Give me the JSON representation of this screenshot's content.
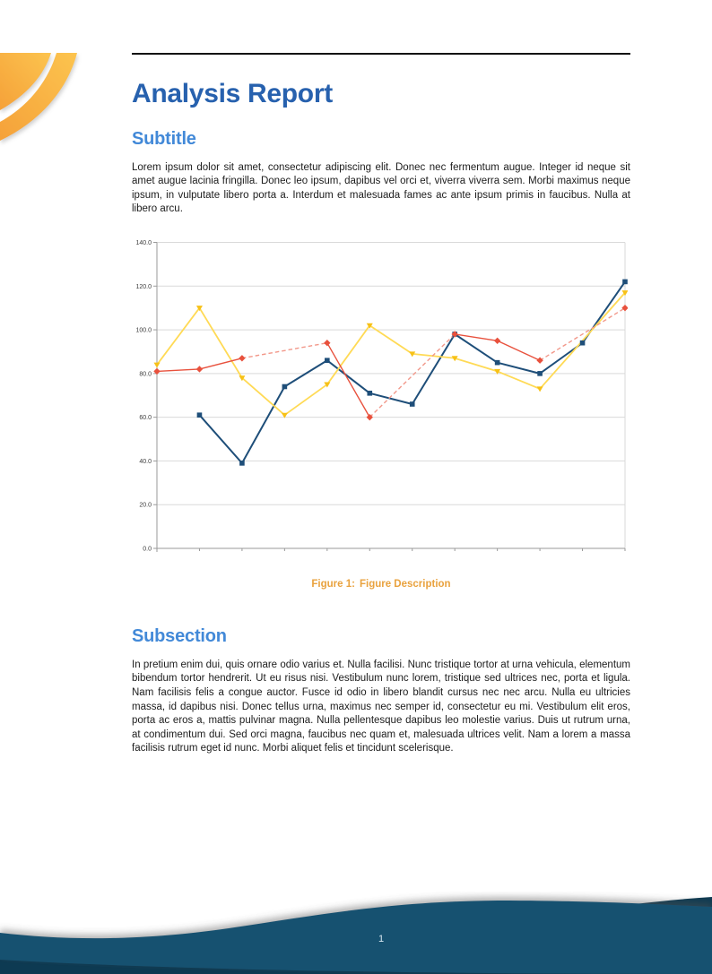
{
  "page": {
    "number": "1",
    "background": "#ffffff"
  },
  "header": {
    "rule_color": "#111111"
  },
  "decorations": {
    "corner_swoosh": {
      "color_start": "#F5A139",
      "color_end": "#FCC44F"
    },
    "footer_wave": {
      "main_color": "#175170",
      "dark_color": "#0D3A52"
    }
  },
  "document": {
    "title": "Analysis Report",
    "title_color": "#2761AE",
    "heading_color": "#4289D8",
    "sections": [
      {
        "heading": "Subtitle",
        "body": "Lorem ipsum dolor sit amet, consectetur adipiscing elit. Donec nec fermentum augue. Integer id neque sit amet augue lacinia fringilla. Donec leo ipsum, dapibus vel orci et, viverra viverra sem. Morbi maximus neque ipsum, in vulputate libero porta a. Interdum et malesuada fames ac ante ipsum primis in faucibus. Nulla at libero arcu."
      },
      {
        "heading": "Subsection",
        "body": "In pretium enim dui, quis ornare odio varius et. Nulla facilisi. Nunc tristique tortor at urna vehicula, elementum bibendum tortor hendrerit. Ut eu risus nisi. Vestibulum nunc lorem, tristique sed ultrices nec, porta et ligula. Nam facilisis felis a congue auctor. Fusce id odio in libero blandit cursus nec nec arcu. Nulla eu ultricies massa, id dapibus nisi. Donec tellus urna, maximus nec semper id, consectetur eu mi. Vestibulum elit eros, porta ac eros a, mattis pulvinar magna. Nulla pellentesque dapibus leo molestie varius. Duis ut rutrum urna, at condimentum dui. Sed orci magna, faucibus nec quam et, malesuada ultrices velit. Nam a lorem a massa facilisis rutrum eget id nunc. Morbi aliquet felis et tincidunt scelerisque."
      }
    ]
  },
  "figure": {
    "caption_label": "Figure 1:",
    "caption_text": "Figure Description",
    "caption_color": "#E9A23E"
  },
  "chart_data": {
    "type": "line",
    "title": "",
    "xlabel": "",
    "ylabel": "",
    "x": [
      0,
      1,
      2,
      3,
      4,
      5,
      6,
      7,
      8,
      9,
      10,
      11
    ],
    "ylim": [
      0,
      140
    ],
    "ytick_step": 20,
    "ytick_labels": [
      "0.0",
      "20.0",
      "40.0",
      "60.0",
      "80.0",
      "100.0",
      "120.0",
      "140.0"
    ],
    "grid": true,
    "legend_position": "none",
    "note": "null = missing point; red gaps drawn as dashed interpolation, yellow gap bridged solid",
    "series": [
      {
        "name": "blue-squares",
        "color": "#1E4E79",
        "marker": "square",
        "width": 2,
        "gap_style": "none",
        "values": [
          null,
          61,
          39,
          74,
          86,
          71,
          66,
          98,
          85,
          80,
          94,
          122
        ]
      },
      {
        "name": "yellow-triangles",
        "color": "#FFDA55",
        "marker_color": "#F7C117",
        "marker": "triangle-down",
        "width": 1.8,
        "gap_style": "solid",
        "values": [
          84,
          110,
          78,
          61,
          75,
          102,
          89,
          87,
          81,
          73,
          null,
          117
        ]
      },
      {
        "name": "red-diamonds",
        "color": "#E8513D",
        "dash_color": "#F2988A",
        "marker": "diamond",
        "width": 1.4,
        "gap_style": "dashed",
        "values": [
          81,
          82,
          87,
          null,
          94,
          60,
          null,
          98,
          95,
          86,
          null,
          110
        ]
      }
    ]
  }
}
